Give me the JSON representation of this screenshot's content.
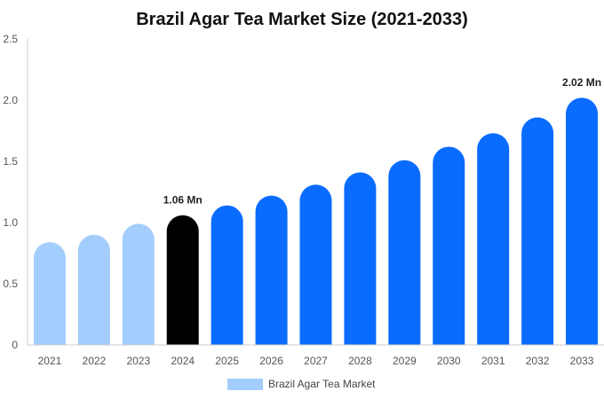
{
  "chart_data": {
    "type": "bar",
    "title": "Brazil Agar Tea Market Size (2021-2033)",
    "xlabel": "",
    "ylabel": "",
    "categories": [
      "2021",
      "2022",
      "2023",
      "2024",
      "2025",
      "2026",
      "2027",
      "2028",
      "2029",
      "2030",
      "2031",
      "2032",
      "2033"
    ],
    "series": [
      {
        "name": "Brazil Agar Tea Market",
        "values": [
          0.84,
          0.9,
          0.99,
          1.06,
          1.14,
          1.22,
          1.31,
          1.41,
          1.51,
          1.62,
          1.73,
          1.86,
          2.02
        ]
      }
    ],
    "ylim": [
      0,
      2.5
    ],
    "yticks": [
      "0",
      "0.5",
      "1.0",
      "1.5",
      "2.0",
      "2.5"
    ],
    "data_labels": [
      {
        "index": 3,
        "text": "1.06 Mn"
      },
      {
        "index": 12,
        "text": "2.02 Mn"
      }
    ],
    "colors": {
      "historical": "#a3cdfd",
      "base_year": "#000000",
      "forecast": "#0a6cff",
      "axis": "#cccccc"
    },
    "grid": false,
    "legend": "bottom-center"
  }
}
